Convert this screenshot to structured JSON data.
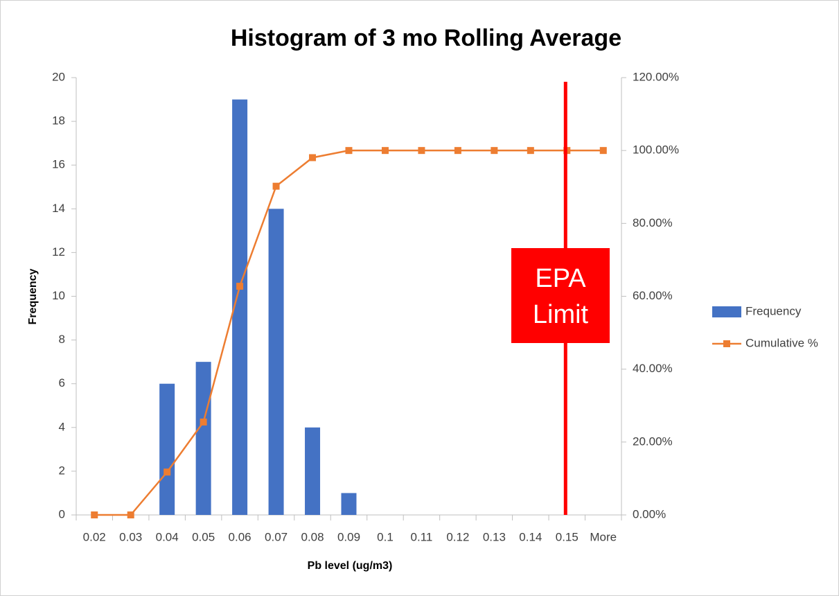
{
  "chart_data": {
    "type": "bar",
    "title": "Histogram of 3 mo Rolling Average",
    "x_label": "Pb level (ug/m3)",
    "y_label": "Frequency",
    "categories": [
      "0.02",
      "0.03",
      "0.04",
      "0.05",
      "0.06",
      "0.07",
      "0.08",
      "0.09",
      "0.1",
      "0.11",
      "0.12",
      "0.13",
      "0.14",
      "0.15",
      "More"
    ],
    "series": [
      {
        "name": "Frequency",
        "type": "bar",
        "color": "#4472c4",
        "values": [
          0,
          0,
          6,
          7,
          19,
          14,
          4,
          1,
          0,
          0,
          0,
          0,
          0,
          0,
          0
        ]
      },
      {
        "name": "Cumulative %",
        "type": "line",
        "axis": "y2",
        "color": "#ed7d31",
        "values": [
          0,
          0,
          11.76,
          25.49,
          62.75,
          90.2,
          98.04,
          100,
          100,
          100,
          100,
          100,
          100,
          100,
          100
        ]
      }
    ],
    "ylim": [
      0,
      20
    ],
    "yticks": [
      0,
      2,
      4,
      6,
      8,
      10,
      12,
      14,
      16,
      18,
      20
    ],
    "y2lim": [
      0,
      120
    ],
    "y2ticks": [
      {
        "value": 0,
        "label": "0.00%"
      },
      {
        "value": 20,
        "label": "20.00%"
      },
      {
        "value": 40,
        "label": "40.00%"
      },
      {
        "value": 60,
        "label": "60.00%"
      },
      {
        "value": 80,
        "label": "80.00%"
      },
      {
        "value": 100,
        "label": "100.00%"
      },
      {
        "value": 120,
        "label": "120.00%"
      }
    ],
    "grid": false,
    "legend": "right",
    "annotation": {
      "lines": [
        "EPA",
        "Limit"
      ],
      "category": "0.15",
      "color": "#ff0000"
    }
  }
}
